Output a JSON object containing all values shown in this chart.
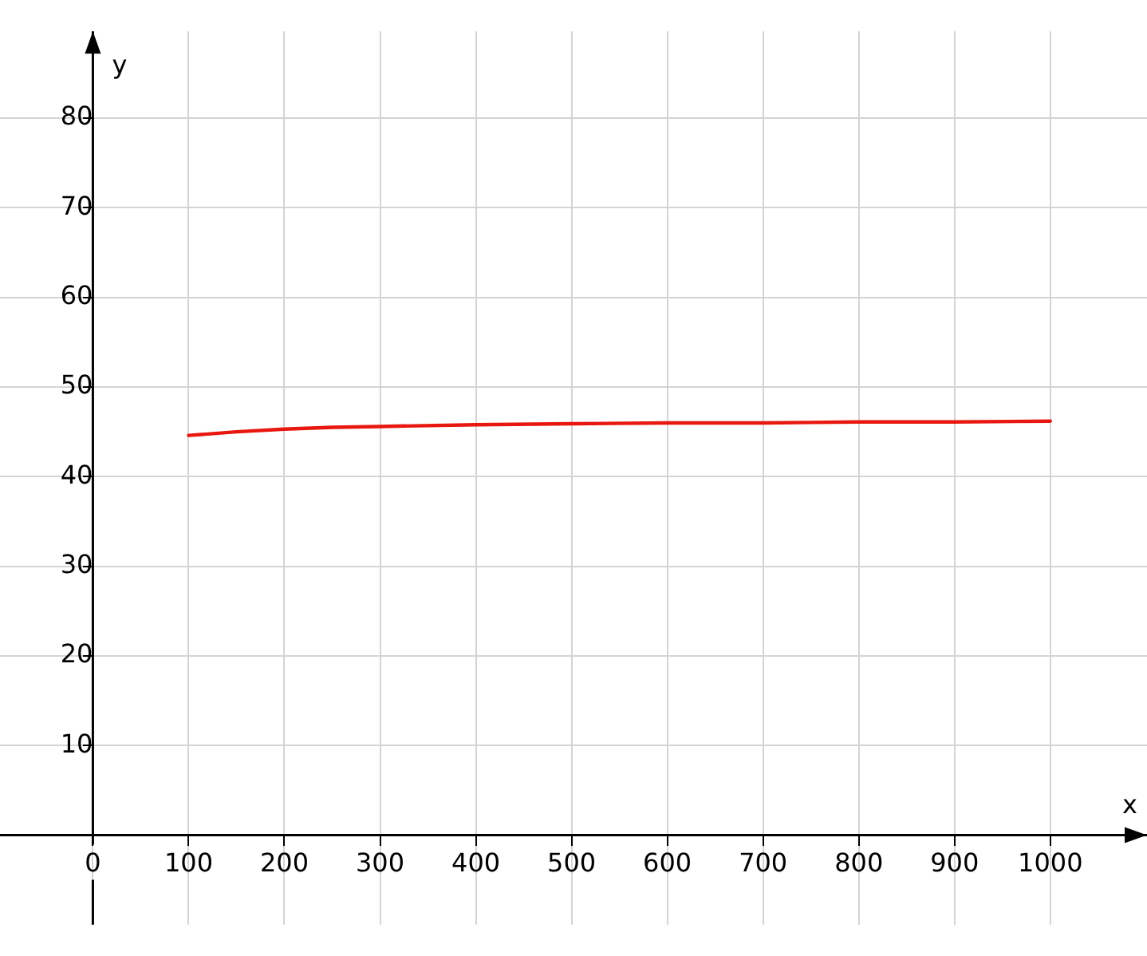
{
  "chart_data": {
    "type": "line",
    "xlabel": "x",
    "ylabel": "y",
    "x": [
      100,
      150,
      200,
      250,
      300,
      400,
      500,
      600,
      700,
      800,
      900,
      1000
    ],
    "series": [
      {
        "color": "#e8170f",
        "values": [
          44.6,
          45.0,
          45.3,
          45.5,
          45.6,
          45.8,
          45.9,
          46.0,
          46.0,
          46.1,
          46.1,
          46.2
        ]
      }
    ],
    "xlim": [
      -97,
      1101
    ],
    "ylim": [
      -10,
      89.7
    ],
    "xticks": [
      0,
      100,
      200,
      300,
      400,
      500,
      600,
      700,
      800,
      900,
      1000
    ],
    "yticks": [
      10,
      20,
      30,
      40,
      50,
      60,
      70,
      80
    ],
    "grid": true,
    "legend": false,
    "marker": "none",
    "line_style": "solid"
  }
}
